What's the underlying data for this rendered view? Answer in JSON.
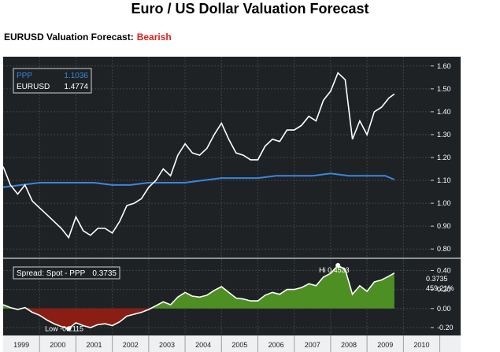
{
  "header": {
    "title": "Euro / US Dollar Valuation Forecast",
    "subtitle_label": "EURUSD Valuation Forecast:",
    "subtitle_value": "Bearish"
  },
  "colors": {
    "background": "#ffffff",
    "panel": "#1e2224",
    "eurusd_line": "#ffffff",
    "ppp_line": "#3a86e0",
    "spread_positive": "#4e8f23",
    "spread_negative": "#8a1e14",
    "rating": "#e0201b"
  },
  "legend": {
    "ppp_label": "PPP",
    "ppp_value": "1.1036",
    "eurusd_label": "EURUSD",
    "eurusd_value": "1.4774",
    "spread_label": "Spread: Spot - PPP",
    "spread_value": "0.3735"
  },
  "annotations": {
    "hi": "Hi 0.4533",
    "low": "Low -0.2115",
    "spread_last": "0.3735",
    "spread_pct": "459.21%"
  },
  "chart_data": [
    {
      "type": "line",
      "title": "",
      "x_years": [
        "1999",
        "2000",
        "2001",
        "2002",
        "2003",
        "2004",
        "2005",
        "2006",
        "2007",
        "2008",
        "2009",
        "2010"
      ],
      "ylim": [
        0.78,
        1.62
      ],
      "y_ticks": [
        "0.80",
        "0.90",
        "1.00",
        "1.10",
        "1.20",
        "1.30",
        "1.40",
        "1.50",
        "1.60"
      ],
      "grid": true,
      "legend_position": "top-left",
      "series": [
        {
          "name": "EURUSD",
          "x": [
            1999.0,
            1999.2,
            1999.4,
            1999.6,
            1999.8,
            2000.0,
            2000.2,
            2000.4,
            2000.6,
            2000.8,
            2001.0,
            2001.2,
            2001.4,
            2001.6,
            2001.8,
            2002.0,
            2002.2,
            2002.4,
            2002.6,
            2002.8,
            2003.0,
            2003.2,
            2003.4,
            2003.6,
            2003.8,
            2004.0,
            2004.2,
            2004.4,
            2004.6,
            2004.8,
            2005.0,
            2005.2,
            2005.4,
            2005.6,
            2005.8,
            2006.0,
            2006.2,
            2006.4,
            2006.6,
            2006.8,
            2007.0,
            2007.2,
            2007.4,
            2007.6,
            2007.8,
            2008.0,
            2008.2,
            2008.4,
            2008.6,
            2008.8,
            2009.0,
            2009.2,
            2009.4,
            2009.6,
            2009.75
          ],
          "values": [
            1.16,
            1.08,
            1.04,
            1.08,
            1.01,
            0.98,
            0.95,
            0.92,
            0.89,
            0.85,
            0.94,
            0.88,
            0.86,
            0.89,
            0.89,
            0.87,
            0.92,
            0.99,
            1.0,
            1.02,
            1.07,
            1.1,
            1.15,
            1.12,
            1.21,
            1.26,
            1.22,
            1.21,
            1.24,
            1.3,
            1.35,
            1.28,
            1.22,
            1.21,
            1.19,
            1.19,
            1.25,
            1.28,
            1.27,
            1.32,
            1.32,
            1.34,
            1.38,
            1.36,
            1.45,
            1.49,
            1.57,
            1.54,
            1.28,
            1.36,
            1.3,
            1.4,
            1.42,
            1.46,
            1.4774
          ]
        },
        {
          "name": "PPP",
          "x": [
            1999.0,
            1999.5,
            2000.0,
            2000.5,
            2001.0,
            2001.5,
            2002.0,
            2002.5,
            2003.0,
            2003.5,
            2004.0,
            2004.5,
            2005.0,
            2005.5,
            2006.0,
            2006.5,
            2007.0,
            2007.5,
            2008.0,
            2008.5,
            2009.0,
            2009.5,
            2009.75
          ],
          "values": [
            1.07,
            1.08,
            1.09,
            1.09,
            1.09,
            1.09,
            1.08,
            1.08,
            1.09,
            1.09,
            1.09,
            1.1,
            1.11,
            1.11,
            1.11,
            1.12,
            1.12,
            1.12,
            1.13,
            1.12,
            1.12,
            1.12,
            1.1036
          ]
        }
      ]
    },
    {
      "type": "area",
      "title": "",
      "ylim": [
        -0.25,
        0.47
      ],
      "y_ticks": [
        "-0.20",
        "0.00",
        "0.20",
        "0.40"
      ],
      "grid": true,
      "series": [
        {
          "name": "Spread: Spot - PPP",
          "x": [
            1999.0,
            1999.2,
            1999.4,
            1999.6,
            1999.8,
            2000.0,
            2000.2,
            2000.4,
            2000.6,
            2000.8,
            2001.0,
            2001.2,
            2001.4,
            2001.6,
            2001.8,
            2002.0,
            2002.2,
            2002.4,
            2002.6,
            2002.8,
            2003.0,
            2003.2,
            2003.4,
            2003.6,
            2003.8,
            2004.0,
            2004.2,
            2004.4,
            2004.6,
            2004.8,
            2005.0,
            2005.2,
            2005.4,
            2005.6,
            2005.8,
            2006.0,
            2006.2,
            2006.4,
            2006.6,
            2006.8,
            2007.0,
            2007.2,
            2007.4,
            2007.6,
            2007.8,
            2008.0,
            2008.2,
            2008.4,
            2008.6,
            2008.8,
            2009.0,
            2009.2,
            2009.4,
            2009.6,
            2009.75
          ],
          "values": [
            0.04,
            0.01,
            -0.01,
            0.01,
            -0.04,
            -0.07,
            -0.12,
            -0.16,
            -0.19,
            -0.2115,
            -0.15,
            -0.18,
            -0.2,
            -0.17,
            -0.16,
            -0.18,
            -0.14,
            -0.08,
            -0.06,
            -0.04,
            -0.01,
            0.03,
            0.07,
            0.04,
            0.12,
            0.17,
            0.13,
            0.12,
            0.14,
            0.19,
            0.23,
            0.17,
            0.11,
            0.1,
            0.08,
            0.08,
            0.14,
            0.17,
            0.15,
            0.2,
            0.2,
            0.22,
            0.26,
            0.24,
            0.33,
            0.37,
            0.4533,
            0.41,
            0.15,
            0.24,
            0.18,
            0.28,
            0.3,
            0.34,
            0.3735
          ]
        }
      ]
    }
  ]
}
